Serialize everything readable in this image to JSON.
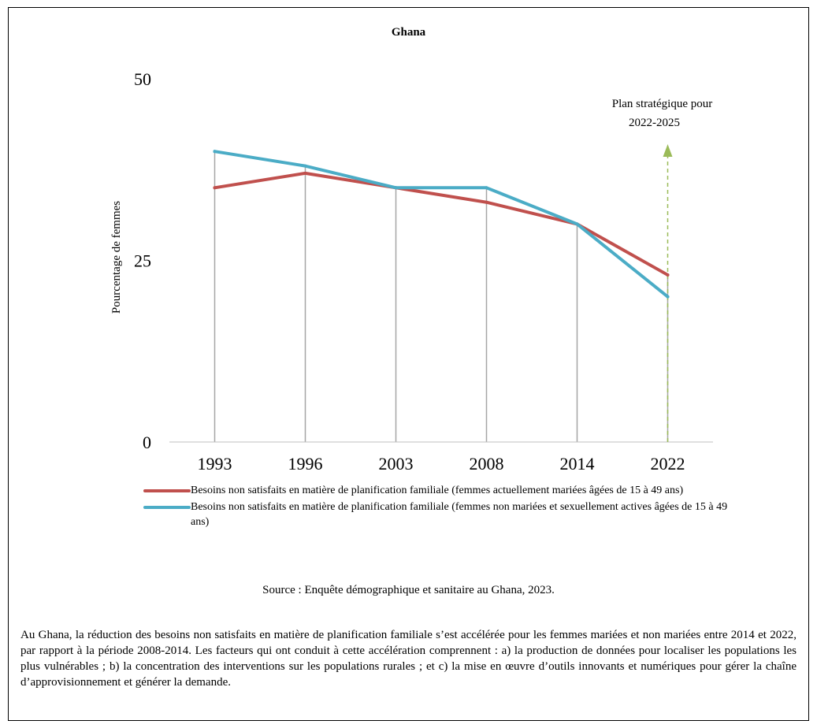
{
  "chart_data": {
    "type": "line",
    "title": "Ghana",
    "ylabel": "Pourcentage de femmes",
    "xlabel": "",
    "categories": [
      "1993",
      "1996",
      "2003",
      "2008",
      "2014",
      "2022"
    ],
    "ylim": [
      0,
      50
    ],
    "yticks": [
      0,
      25,
      50
    ],
    "grid": "vertical lines at each year",
    "series": [
      {
        "name": "Besoins non satisfaits en matière de planification familiale (femmes actuellement mariées âgées de 15 à 49 ans)",
        "color": "#c0504d",
        "values": [
          35,
          37,
          35,
          33,
          30,
          23
        ]
      },
      {
        "name": "Besoins non satisfaits en matière de planification familiale (femmes non mariées et sexuellement actives âgées de 15 à 49 ans)",
        "color": "#4bacc6",
        "values": [
          40,
          38,
          35,
          35,
          30,
          20
        ]
      }
    ],
    "annotation": {
      "text_line1": "Plan stratégique pour",
      "text_line2": "2022-2025",
      "at_category": "2022",
      "color": "#9bbb59"
    },
    "legend_position": "bottom"
  },
  "source": "Source : Enquête démographique et sanitaire au Ghana, 2023.",
  "paragraph": "Au Ghana, la réduction des besoins non satisfaits en matière de planification familiale s’est accélérée pour les femmes mariées et non mariées entre 2014 et 2022, par rapport à la période 2008-2014. Les facteurs qui ont conduit à cette accélération comprennent : a) la production de données pour localiser les populations les plus vulnérables ; b) la concentration des interventions sur les populations rurales ; et c) la mise en œuvre d’outils innovants et numériques pour gérer la chaîne d’approvisionnement et générer la demande."
}
